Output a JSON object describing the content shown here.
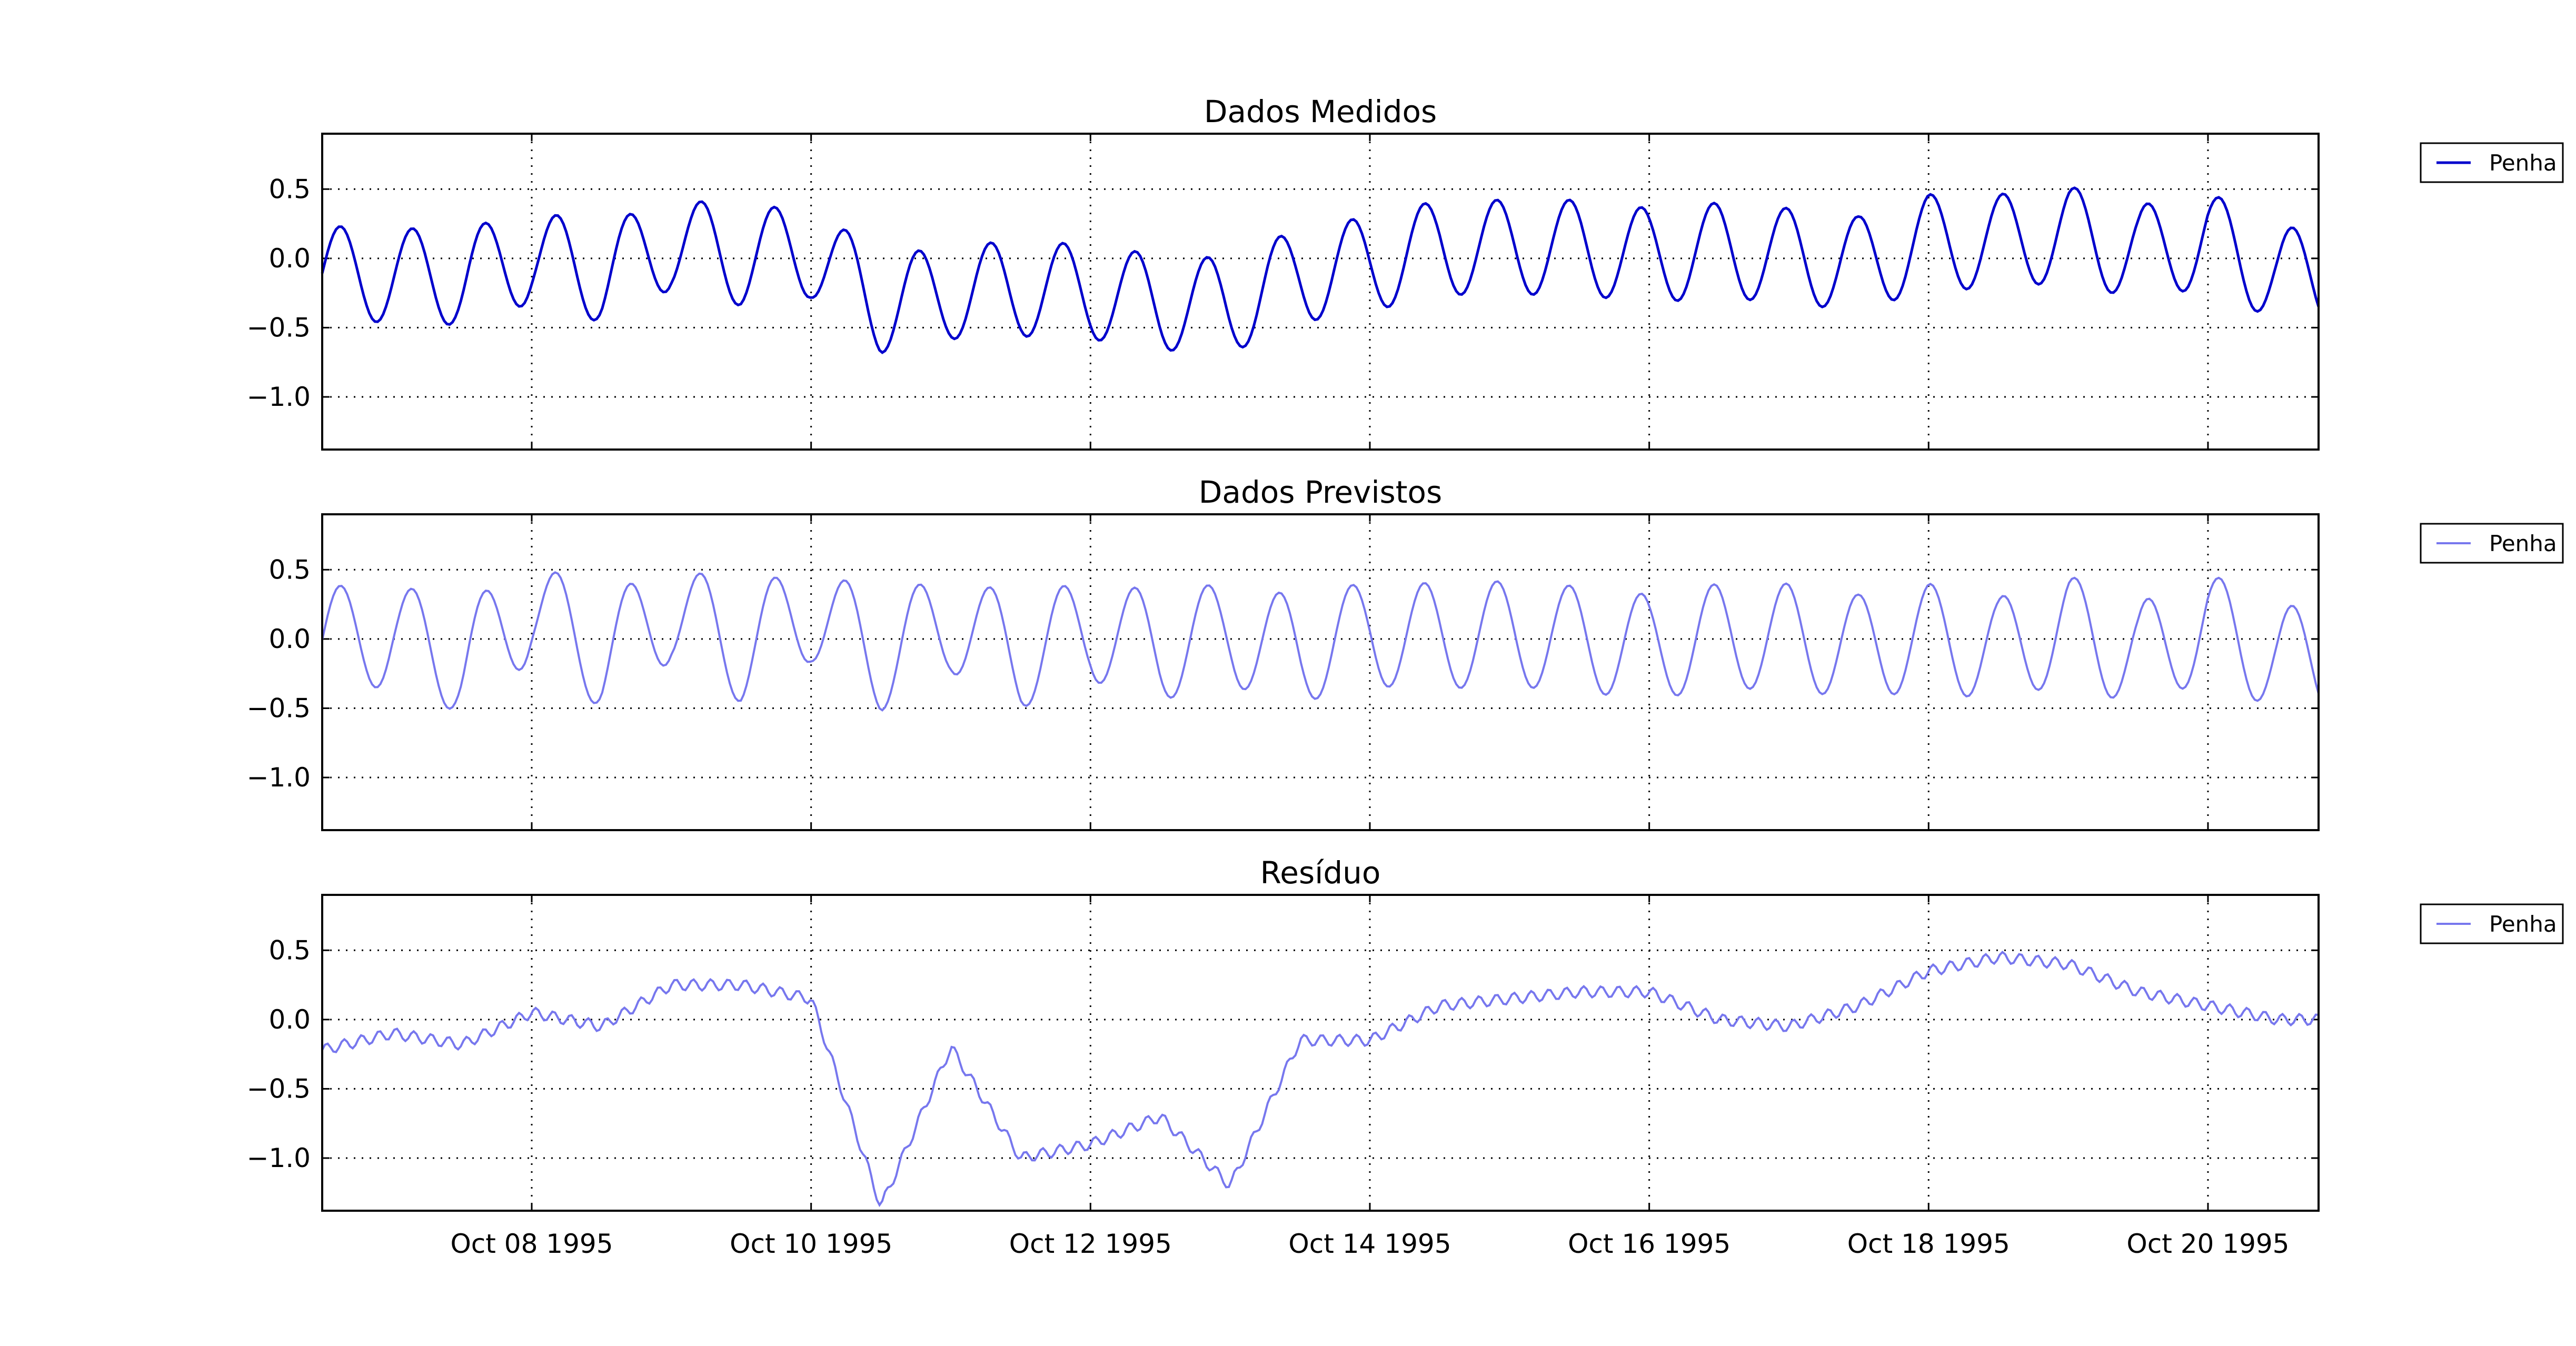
{
  "figure": {
    "x_tick_labels": [
      "Oct 08 1995",
      "Oct 10 1995",
      "Oct 12 1995",
      "Oct 14 1995",
      "Oct 16 1995",
      "Oct 18 1995",
      "Oct 20 1995"
    ]
  },
  "chart_data": [
    {
      "type": "line",
      "title": "Dados Medidos",
      "xlabel": "",
      "ylabel": "",
      "xlim": [
        "1995-10-06 12:00",
        "1995-10-20 19:00"
      ],
      "ylim": [
        -1.38,
        0.9
      ],
      "yticks": [
        0.5,
        0.0,
        -0.5,
        -1.0
      ],
      "ytick_labels": [
        "0.5",
        "0.0",
        "−0.5",
        "−1.0"
      ],
      "grid": true,
      "legend": "outside-right",
      "color": "#0000cc",
      "series": [
        {
          "name": "Penha",
          "x": [
            "1995-10-06 12:00",
            "1995-10-07 00:00",
            "1995-10-07 12:00",
            "1995-10-08 00:00",
            "1995-10-08 12:00",
            "1995-10-09 00:00",
            "1995-10-09 12:00",
            "1995-10-10 00:00",
            "1995-10-10 12:00",
            "1995-10-11 00:00",
            "1995-10-11 12:00",
            "1995-10-12 00:00",
            "1995-10-12 12:00",
            "1995-10-13 00:00",
            "1995-10-13 12:00",
            "1995-10-14 00:00",
            "1995-10-14 12:00",
            "1995-10-15 00:00",
            "1995-10-15 12:00",
            "1995-10-16 00:00",
            "1995-10-16 12:00",
            "1995-10-17 00:00",
            "1995-10-17 12:00",
            "1995-10-18 00:00",
            "1995-10-18 12:00",
            "1995-10-19 00:00",
            "1995-10-19 12:00",
            "1995-10-20 00:00",
            "1995-10-20 12:00"
          ],
          "y": [
            -0.27,
            -0.3,
            -0.35,
            0.05,
            -0.3,
            0.3,
            0.0,
            0.15,
            -0.85,
            -0.6,
            -0.55,
            -0.6,
            -0.8,
            -0.85,
            -0.3,
            -0.1,
            0.2,
            0.2,
            0.2,
            0.05,
            0.15,
            0.05,
            -0.1,
            0.3,
            0.3,
            0.45,
            0.1,
            0.35,
            -0.3
          ]
        }
      ]
    },
    {
      "type": "line",
      "title": "Dados Previstos",
      "xlabel": "",
      "ylabel": "",
      "xlim": [
        "1995-10-06 12:00",
        "1995-10-20 19:00"
      ],
      "ylim": [
        -1.38,
        0.9
      ],
      "yticks": [
        0.5,
        0.0,
        -0.5,
        -1.0
      ],
      "ytick_labels": [
        "0.5",
        "0.0",
        "−0.5",
        "−1.0"
      ],
      "grid": true,
      "legend": "outside-right",
      "color": "#7777ee",
      "series": [
        {
          "name": "Penha",
          "x": [
            "1995-10-06 12:00",
            "1995-10-07 00:00",
            "1995-10-07 12:00",
            "1995-10-08 00:00",
            "1995-10-08 12:00",
            "1995-10-09 00:00",
            "1995-10-09 12:00",
            "1995-10-10 00:00",
            "1995-10-10 12:00",
            "1995-10-11 00:00",
            "1995-10-11 12:00",
            "1995-10-12 00:00",
            "1995-10-12 12:00",
            "1995-10-13 00:00",
            "1995-10-13 12:00",
            "1995-10-14 00:00",
            "1995-10-14 12:00",
            "1995-10-15 00:00",
            "1995-10-15 12:00",
            "1995-10-16 00:00",
            "1995-10-16 12:00",
            "1995-10-17 00:00",
            "1995-10-17 12:00",
            "1995-10-18 00:00",
            "1995-10-18 12:00",
            "1995-10-19 00:00",
            "1995-10-19 12:00",
            "1995-10-20 00:00",
            "1995-10-20 12:00"
          ],
          "y": [
            -0.02,
            0.1,
            -0.4,
            0.55,
            -0.3,
            0.55,
            -0.2,
            0.55,
            -0.35,
            0.35,
            -0.3,
            0.2,
            -0.15,
            0.1,
            -0.2,
            0.1,
            0.05,
            0.1,
            0.0,
            -0.15,
            0.05,
            0.05,
            -0.15,
            0.05,
            -0.2,
            0.2,
            -0.3,
            0.25,
            -0.35
          ]
        }
      ]
    },
    {
      "type": "line",
      "title": "Resíduo",
      "xlabel": "",
      "ylabel": "",
      "xlim": [
        "1995-10-06 12:00",
        "1995-10-20 19:00"
      ],
      "ylim": [
        -1.38,
        0.9
      ],
      "yticks": [
        0.5,
        0.0,
        -0.5,
        -1.0
      ],
      "ytick_labels": [
        "0.5",
        "0.0",
        "−0.5",
        "−1.0"
      ],
      "grid": true,
      "legend": "outside-right",
      "color": "#7777ee",
      "series": [
        {
          "name": "Penha",
          "x": [
            "1995-10-06 12:00",
            "1995-10-07 00:00",
            "1995-10-07 12:00",
            "1995-10-08 00:00",
            "1995-10-08 12:00",
            "1995-10-09 00:00",
            "1995-10-09 12:00",
            "1995-10-10 00:00",
            "1995-10-10 12:00",
            "1995-10-11 00:00",
            "1995-10-11 12:00",
            "1995-10-12 00:00",
            "1995-10-12 12:00",
            "1995-10-13 00:00",
            "1995-10-13 12:00",
            "1995-10-14 00:00",
            "1995-10-14 12:00",
            "1995-10-15 00:00",
            "1995-10-15 12:00",
            "1995-10-16 00:00",
            "1995-10-16 12:00",
            "1995-10-17 00:00",
            "1995-10-17 12:00",
            "1995-10-18 00:00",
            "1995-10-18 12:00",
            "1995-10-19 00:00",
            "1995-10-19 12:00",
            "1995-10-20 00:00",
            "1995-10-20 12:00"
          ],
          "y": [
            -0.22,
            -0.1,
            -0.18,
            0.05,
            -0.05,
            0.25,
            0.25,
            0.15,
            -1.35,
            -0.2,
            -1.0,
            -0.9,
            -0.7,
            -1.2,
            -0.15,
            -0.15,
            0.1,
            0.15,
            0.2,
            0.2,
            0.0,
            -0.05,
            0.1,
            0.35,
            0.45,
            0.4,
            0.2,
            0.1,
            0.0
          ]
        }
      ]
    }
  ]
}
